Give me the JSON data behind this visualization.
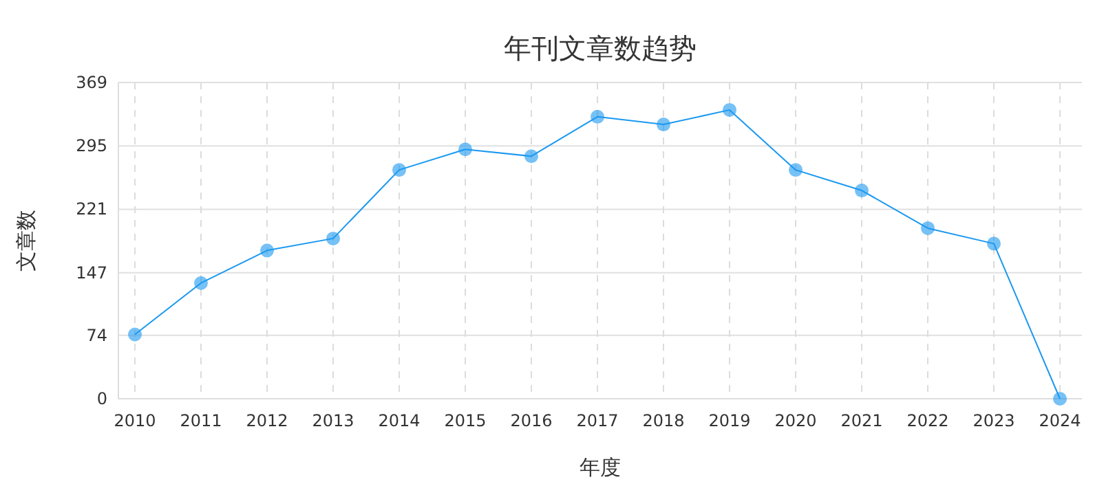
{
  "chart_data": {
    "type": "line",
    "title": "年刊文章数趋势",
    "xlabel": "年度",
    "ylabel": "文章数",
    "categories": [
      "2010",
      "2011",
      "2012",
      "2013",
      "2014",
      "2015",
      "2016",
      "2017",
      "2018",
      "2019",
      "2020",
      "2021",
      "2022",
      "2023",
      "2024"
    ],
    "series": [
      {
        "color": "#1a98f0",
        "values": [
          75,
          135,
          173,
          187,
          267,
          291,
          283,
          329,
          320,
          337,
          267,
          243,
          199,
          181,
          0
        ]
      }
    ],
    "ylim": [
      0,
      369
    ],
    "yticks": [
      0,
      74,
      147,
      221,
      295,
      369
    ],
    "grid": true,
    "marker": "circle",
    "line_style": "solid"
  }
}
